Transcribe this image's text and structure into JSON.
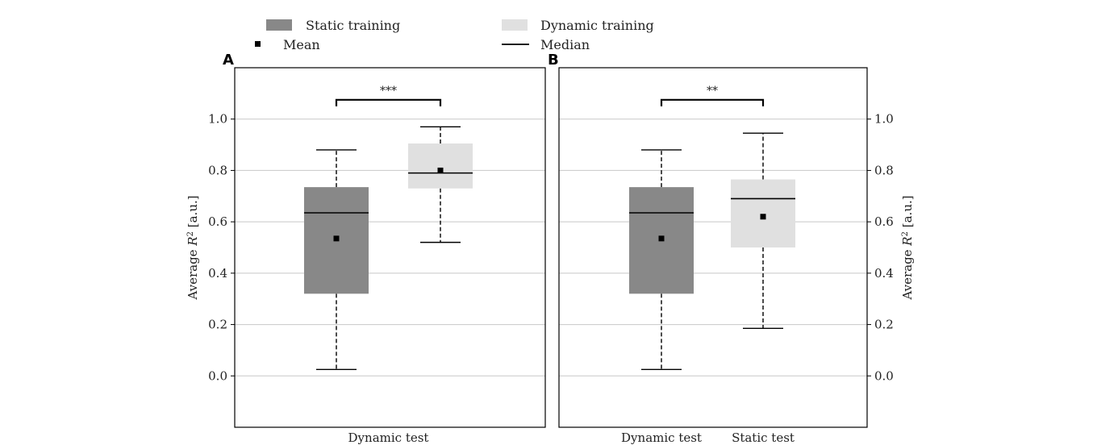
{
  "legend": {
    "items": [
      {
        "label": "Static training",
        "kind": "patch",
        "color": "#888888"
      },
      {
        "label": "Dynamic training",
        "kind": "patch",
        "color": "#e0e0e0"
      },
      {
        "label": "Mean",
        "kind": "marker",
        "color": "#000000"
      },
      {
        "label": "Median",
        "kind": "line",
        "color": "#000000"
      }
    ]
  },
  "colors": {
    "static_training": "#888888",
    "dynamic_training": "#e0e0e0",
    "grid": "#c8c8c8",
    "frame": "#000000"
  },
  "chart_data": [
    {
      "type": "box",
      "panel_label": "A",
      "ylabel": "Average R² [a.u.]",
      "ylabel_main": "Average ",
      "ylabel_var": "R",
      "ylabel_sup": "2",
      "ylabel_unit": " [a.u.]",
      "ylim": [
        -0.2,
        1.2
      ],
      "yticks": [
        0.0,
        0.2,
        0.4,
        0.6,
        0.8,
        1.0
      ],
      "ytick_labels": [
        "0.0",
        "0.2",
        "0.4",
        "0.6",
        "0.8",
        "1.0"
      ],
      "yaxis_side": "left",
      "grid": true,
      "group_labels": [
        "Dynamic test"
      ],
      "boxes": [
        {
          "training": "Static training",
          "color": "#888888",
          "whisker_low": 0.025,
          "q1": 0.32,
          "median": 0.635,
          "q3": 0.735,
          "whisker_high": 0.88,
          "mean": 0.535
        },
        {
          "training": "Dynamic training",
          "color": "#e0e0e0",
          "whisker_low": 0.52,
          "q1": 0.73,
          "median": 0.79,
          "q3": 0.905,
          "whisker_high": 0.97,
          "mean": 0.8
        }
      ],
      "significance": {
        "label": "***",
        "between": [
          0,
          1
        ],
        "y": 1.075
      }
    },
    {
      "type": "box",
      "panel_label": "B",
      "ylabel": "Average R² [a.u.]",
      "ylabel_main": "Average ",
      "ylabel_var": "R",
      "ylabel_sup": "2",
      "ylabel_unit": " [a.u.]",
      "ylim": [
        -0.2,
        1.2
      ],
      "yticks": [
        0.0,
        0.2,
        0.4,
        0.6,
        0.8,
        1.0
      ],
      "ytick_labels": [
        "0.0",
        "0.2",
        "0.4",
        "0.6",
        "0.8",
        "1.0"
      ],
      "yaxis_side": "right",
      "grid": true,
      "group_labels": [
        "Dynamic test",
        "Static test"
      ],
      "boxes": [
        {
          "training": "Static training",
          "test": "Dynamic test",
          "color": "#888888",
          "whisker_low": 0.025,
          "q1": 0.32,
          "median": 0.635,
          "q3": 0.735,
          "whisker_high": 0.88,
          "mean": 0.535
        },
        {
          "training": "Dynamic training",
          "test": "Static test",
          "color": "#e0e0e0",
          "whisker_low": 0.185,
          "q1": 0.5,
          "median": 0.69,
          "q3": 0.765,
          "whisker_high": 0.945,
          "mean": 0.62
        }
      ],
      "significance": {
        "label": "**",
        "between": [
          0,
          1
        ],
        "y": 1.075
      }
    }
  ]
}
